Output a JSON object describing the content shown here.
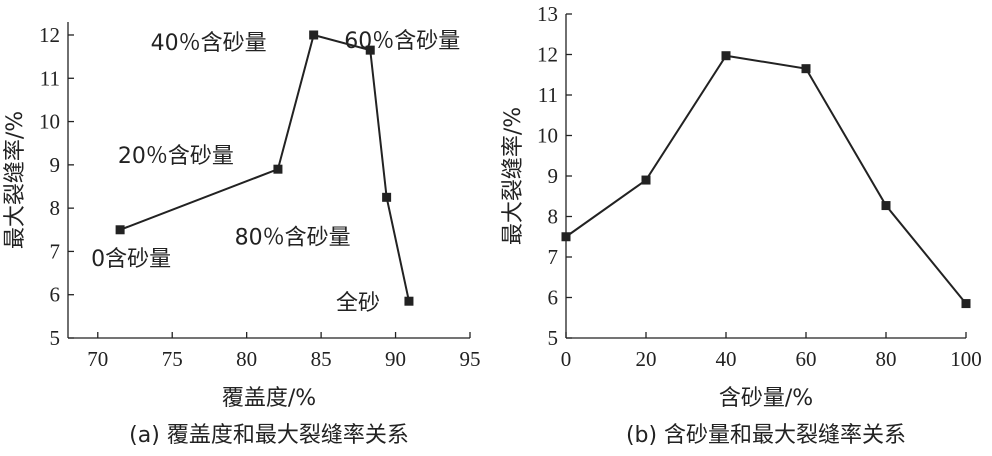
{
  "chart_data": [
    {
      "type": "line",
      "caption": "(a) 覆盖度和最大裂缝率关系",
      "xlabel": "覆盖度/%",
      "ylabel": "最大裂缝率/%",
      "xlim": [
        68,
        95
      ],
      "ylim": [
        5,
        12.3
      ],
      "xticks": [
        70,
        75,
        80,
        85,
        90,
        95
      ],
      "yticks": [
        5,
        6,
        7,
        8,
        9,
        10,
        11,
        12
      ],
      "grid": false,
      "points": [
        {
          "x": 71.5,
          "y": 7.5,
          "label": "0含砂量",
          "label_pos": "below-left"
        },
        {
          "x": 82.1,
          "y": 8.9,
          "label": "20％含砂量",
          "label_pos": "above-left"
        },
        {
          "x": 84.5,
          "y": 12.0,
          "label": "40％含砂量",
          "label_pos": "left"
        },
        {
          "x": 88.3,
          "y": 11.65,
          "label": "60％含砂量",
          "label_pos": "above-right"
        },
        {
          "x": 89.4,
          "y": 8.25,
          "label": "80％含砂量",
          "label_pos": "below-left"
        },
        {
          "x": 90.9,
          "y": 5.85,
          "label": "全砂",
          "label_pos": "left"
        }
      ]
    },
    {
      "type": "line",
      "caption": "(b) 含砂量和最大裂缝率关系",
      "xlabel": "含砂量/%",
      "ylabel": "最大裂缝率/%",
      "xlim": [
        0,
        100
      ],
      "ylim": [
        5,
        13
      ],
      "xticks": [
        0,
        20,
        40,
        60,
        80,
        100
      ],
      "yticks": [
        5,
        6,
        7,
        8,
        9,
        10,
        11,
        12,
        13
      ],
      "grid": false,
      "points": [
        {
          "x": 0,
          "y": 7.5
        },
        {
          "x": 20,
          "y": 8.9
        },
        {
          "x": 40,
          "y": 11.97
        },
        {
          "x": 60,
          "y": 11.65
        },
        {
          "x": 80,
          "y": 8.27
        },
        {
          "x": 100,
          "y": 5.85
        }
      ]
    }
  ]
}
